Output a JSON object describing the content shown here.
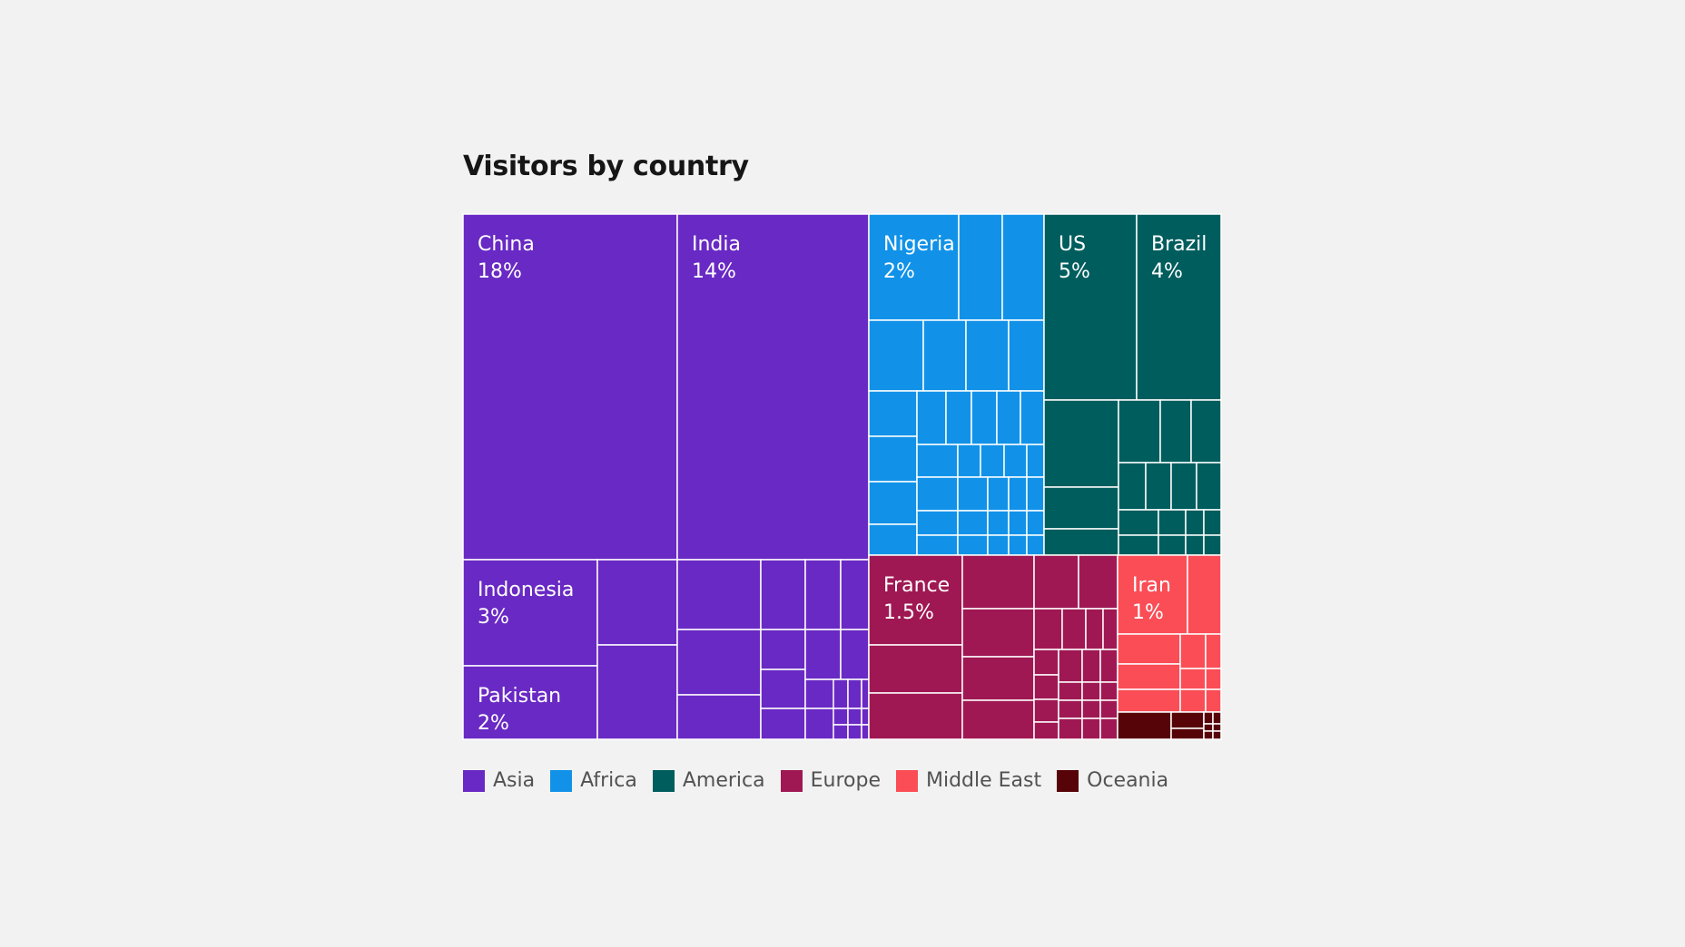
{
  "chart_data": {
    "type": "treemap",
    "title": "Visitors by country",
    "legend_position": "bottom-left",
    "groups": [
      {
        "name": "Asia",
        "color": "#6929c4",
        "labeled": [
          {
            "name": "China",
            "value": "18%"
          },
          {
            "name": "India",
            "value": "14%"
          },
          {
            "name": "Indonesia",
            "value": "3%"
          },
          {
            "name": "Pakistan",
            "value": "2%"
          }
        ]
      },
      {
        "name": "Africa",
        "color": "#1192e8",
        "labeled": [
          {
            "name": "Nigeria",
            "value": "2%"
          }
        ]
      },
      {
        "name": "America",
        "color": "#005d5d",
        "labeled": [
          {
            "name": "US",
            "value": "5%"
          },
          {
            "name": "Brazil",
            "value": "4%"
          }
        ]
      },
      {
        "name": "Europe",
        "color": "#9f1853",
        "labeled": [
          {
            "name": "France",
            "value": "1.5%"
          }
        ]
      },
      {
        "name": "Middle East",
        "color": "#fa4d56",
        "labeled": [
          {
            "name": "Iran",
            "value": "1%"
          }
        ]
      },
      {
        "name": "Oceania",
        "color": "#570408",
        "labeled": []
      }
    ]
  }
}
